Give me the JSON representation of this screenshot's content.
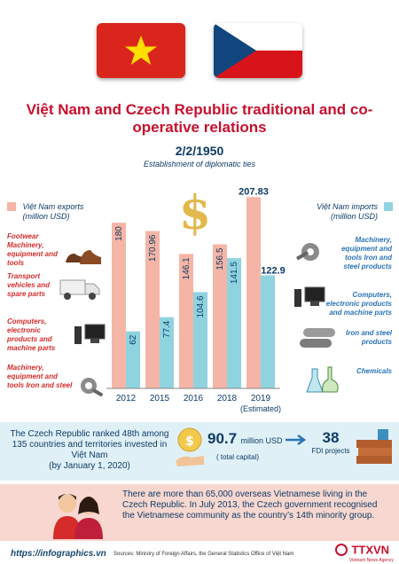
{
  "title": "Việt Nam and Czech Republic traditional and co-operative relations",
  "date": "2/2/1950",
  "date_caption": "Establishment of diplomatic ties",
  "legend_exports": "Việt Nam exports (million USD)",
  "legend_imports": "Việt Nam imports (million USD)",
  "export_categories": [
    "Footwear Machinery, equipment and tools",
    "Transport vehicles and spare parts",
    "Computers, electronic products and machine parts",
    "Machinery, equipment and tools Iron and steel"
  ],
  "import_categories": [
    "Machinery, equipment and tools Iron and steel products",
    "Computers, electronic products and machine parts",
    "Iron and steel products",
    "Chemicals"
  ],
  "chart_data": {
    "type": "bar",
    "categories": [
      "2012",
      "2015",
      "2016",
      "2018",
      "2019"
    ],
    "category_notes": [
      "",
      "",
      "",
      "",
      "(Estimated)"
    ],
    "series": [
      {
        "name": "Việt Nam exports (million USD)",
        "values": [
          180,
          170.96,
          146.1,
          156.5,
          207.83
        ],
        "color": "#f5b5a6"
      },
      {
        "name": "Việt Nam imports (million USD)",
        "values": [
          62,
          77.4,
          104.6,
          141.5,
          122.9
        ],
        "color": "#8fd3df"
      }
    ],
    "value_labels": {
      "exports": [
        "180",
        "170.96",
        "146.1",
        "156.5",
        "207.83"
      ],
      "imports": [
        "62",
        "77.4",
        "104.6",
        "141.5",
        "122.9"
      ]
    },
    "ylim": [
      0,
      210
    ]
  },
  "info1": {
    "text": "The Czech Republic ranked 48th among 135 countries and territories invested in Việt Nam",
    "subtext": "(by January 1, 2020)",
    "capital_value": "90.7",
    "capital_unit": "million USD",
    "capital_note": "( total capital)",
    "projects_value": "38",
    "projects_label": "FDI projects"
  },
  "info2_text": "There are more than 65,000 overseas Vietnamese living in the Czech Republic. In July 2013, the Czech government recognised the Vietnamese community as the country’s 14th minority group.",
  "footer_link": "https://infographics.vn",
  "sources": "Sources: Ministry of Foreign Affairs, the General Statistics Office of Việt Nam",
  "agency_logo": "TTXVN",
  "agency_sub": "Vietnam News Agency",
  "colors": {
    "red": "#d62b2b",
    "navy": "#0d3b66",
    "export_bar": "#f5b5a6",
    "import_bar": "#8fd3df"
  }
}
